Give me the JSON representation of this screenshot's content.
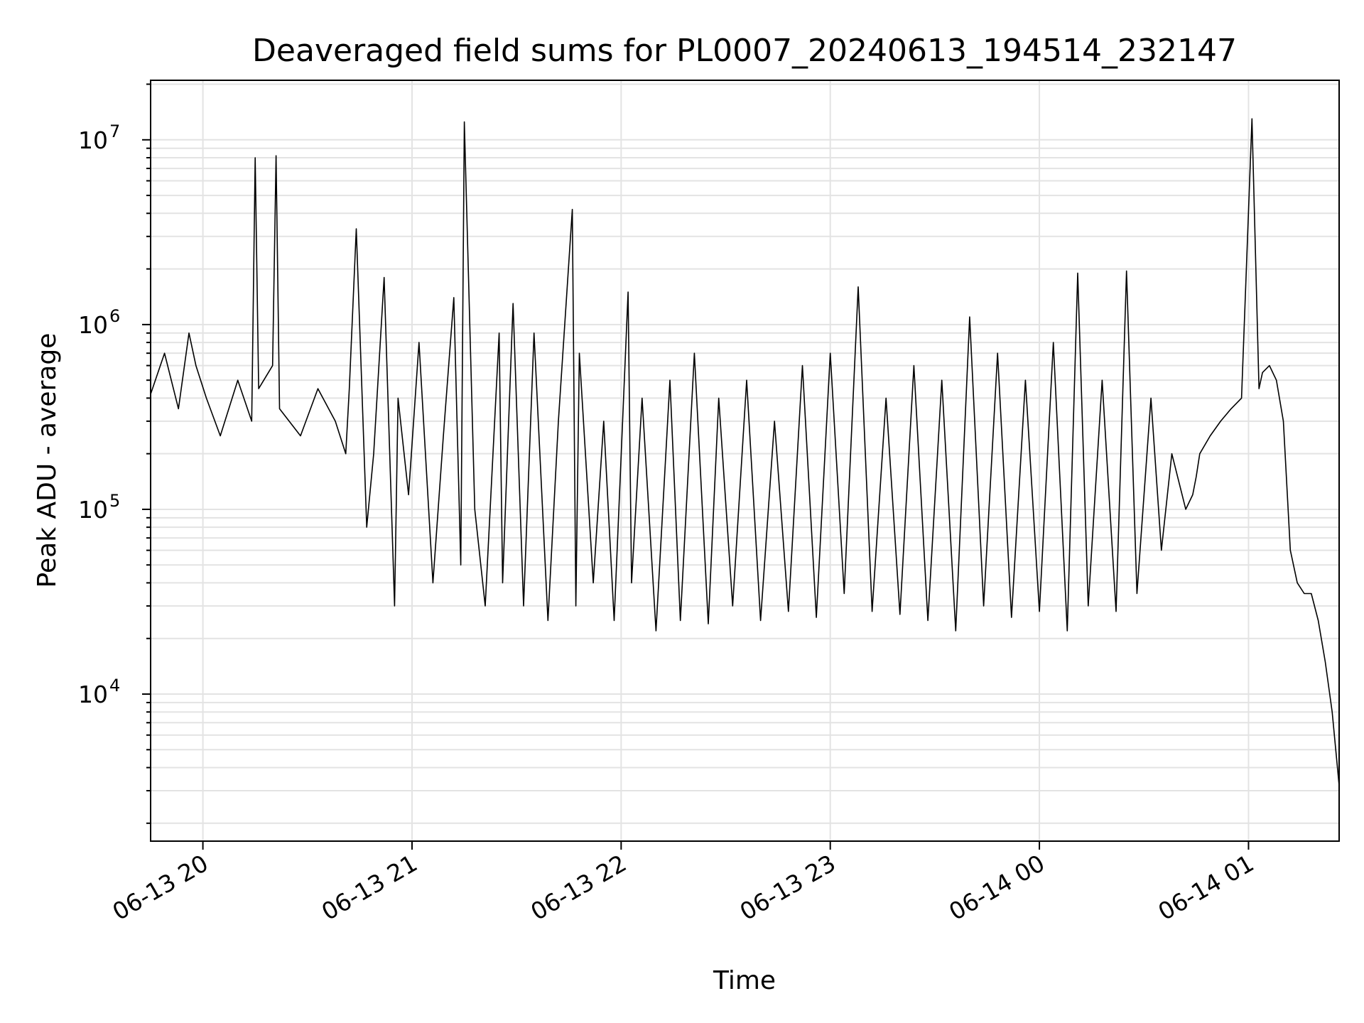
{
  "chart_data": {
    "type": "line",
    "title": "Deaveraged field sums for PL0007_20240613_194514_232147",
    "xlabel": "Time",
    "ylabel": "Peak ADU - average",
    "yscale": "log",
    "xlim": [
      "06-13 19:45",
      "06-14 01:26"
    ],
    "ylim": [
      1600,
      21000000
    ],
    "grid": true,
    "line_color": "#000000",
    "x_ticks": [
      "06-13 20",
      "06-13 21",
      "06-13 22",
      "06-13 23",
      "06-14 00",
      "06-14 01"
    ],
    "y_ticks": [
      {
        "base": "10",
        "exp": "4",
        "value": 10000
      },
      {
        "base": "10",
        "exp": "5",
        "value": 100000
      },
      {
        "base": "10",
        "exp": "6",
        "value": 1000000
      },
      {
        "base": "10",
        "exp": "7",
        "value": 10000000
      }
    ],
    "series": [
      {
        "x": [
          "06-13 19:45",
          "06-13 19:49",
          "06-13 19:53",
          "06-13 19:56",
          "06-13 19:58",
          "06-13 20:01",
          "06-13 20:05",
          "06-13 20:10",
          "06-13 20:14",
          "06-13 20:15",
          "06-13 20:16",
          "06-13 20:20",
          "06-13 20:21",
          "06-13 20:22",
          "06-13 20:28",
          "06-13 20:33",
          "06-13 20:38",
          "06-13 20:41",
          "06-13 20:42",
          "06-13 20:44",
          "06-13 20:47",
          "06-13 20:49",
          "06-13 20:52",
          "06-13 20:55",
          "06-13 20:56",
          "06-13 20:59",
          "06-13 21:02",
          "06-13 21:06",
          "06-13 21:09",
          "06-13 21:12",
          "06-13 21:14",
          "06-13 21:15",
          "06-13 21:18",
          "06-13 21:21",
          "06-13 21:25",
          "06-13 21:26",
          "06-13 21:29",
          "06-13 21:32",
          "06-13 21:35",
          "06-13 21:39",
          "06-13 21:42",
          "06-13 21:46",
          "06-13 21:47",
          "06-13 21:48",
          "06-13 21:52",
          "06-13 21:55",
          "06-13 21:58",
          "06-13 22:02",
          "06-13 22:03",
          "06-13 22:06",
          "06-13 22:10",
          "06-13 22:14",
          "06-13 22:17",
          "06-13 22:21",
          "06-13 22:25",
          "06-13 22:28",
          "06-13 22:32",
          "06-13 22:36",
          "06-13 22:40",
          "06-13 22:44",
          "06-13 22:48",
          "06-13 22:52",
          "06-13 22:56",
          "06-13 23:00",
          "06-13 23:04",
          "06-13 23:08",
          "06-13 23:12",
          "06-13 23:16",
          "06-13 23:20",
          "06-13 23:24",
          "06-13 23:28",
          "06-13 23:32",
          "06-13 23:36",
          "06-13 23:40",
          "06-13 23:44",
          "06-13 23:48",
          "06-13 23:52",
          "06-13 23:56",
          "06-14 00:00",
          "06-14 00:04",
          "06-14 00:08",
          "06-14 00:11",
          "06-14 00:14",
          "06-14 00:18",
          "06-14 00:22",
          "06-14 00:25",
          "06-14 00:28",
          "06-14 00:32",
          "06-14 00:35",
          "06-14 00:38",
          "06-14 00:42",
          "06-14 00:44",
          "06-14 00:45",
          "06-14 00:46",
          "06-14 00:49",
          "06-14 00:52",
          "06-14 00:55",
          "06-14 00:58",
          "06-14 01:01",
          "06-14 01:03",
          "06-14 01:04",
          "06-14 01:06",
          "06-14 01:08",
          "06-14 01:10",
          "06-14 01:12",
          "06-14 01:14",
          "06-14 01:16",
          "06-14 01:18",
          "06-14 01:20",
          "06-14 01:22",
          "06-14 01:24",
          "06-14 01:26"
        ],
        "y": [
          420000,
          700000,
          350000,
          900000,
          600000,
          400000,
          250000,
          500000,
          300000,
          8000000,
          450000,
          600000,
          8200000,
          350000,
          250000,
          450000,
          300000,
          200000,
          450000,
          3300000,
          80000,
          200000,
          1800000,
          30000,
          400000,
          120000,
          800000,
          40000,
          250000,
          1400000,
          50000,
          12500000,
          100000,
          30000,
          900000,
          40000,
          1300000,
          30000,
          900000,
          25000,
          300000,
          4200000,
          30000,
          700000,
          40000,
          300000,
          25000,
          1500000,
          40000,
          400000,
          22000,
          500000,
          25000,
          700000,
          24000,
          400000,
          30000,
          500000,
          25000,
          300000,
          28000,
          600000,
          26000,
          700000,
          35000,
          1600000,
          28000,
          400000,
          27000,
          600000,
          25000,
          500000,
          22000,
          1100000,
          30000,
          700000,
          26000,
          500000,
          28000,
          800000,
          22000,
          1900000,
          30000,
          500000,
          28000,
          1950000,
          35000,
          400000,
          60000,
          200000,
          100000,
          120000,
          150000,
          200000,
          250000,
          300000,
          350000,
          400000,
          13000000,
          450000,
          550000,
          600000,
          500000,
          300000,
          60000,
          40000,
          35000,
          35000,
          25000,
          15000,
          8000,
          3200
        ]
      }
    ]
  }
}
